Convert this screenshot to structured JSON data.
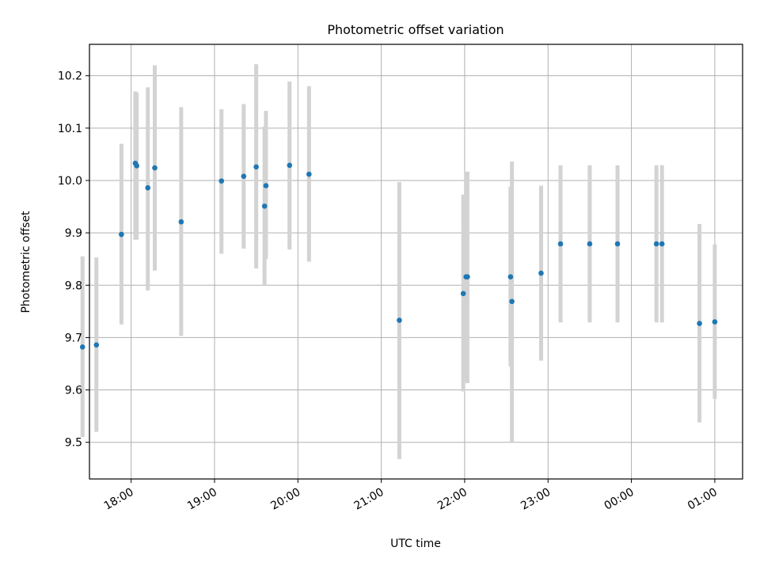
{
  "chart_data": {
    "type": "scatter",
    "title": "Photometric offset variation",
    "xlabel": "UTC time",
    "ylabel": "Photometric offset",
    "x_axis": {
      "kind": "time",
      "range": [
        "17:30",
        "01:20"
      ],
      "ticks": [
        "18:00",
        "19:00",
        "20:00",
        "21:00",
        "22:00",
        "23:00",
        "00:00",
        "01:00"
      ]
    },
    "y_axis": {
      "range": [
        9.43,
        10.26
      ],
      "ticks": [
        "9.5",
        "9.6",
        "9.7",
        "9.8",
        "9.9",
        "10.0",
        "10.1",
        "10.2"
      ]
    },
    "grid": true,
    "colors": {
      "point": "#1f77b4",
      "errorbar": "#d3d3d3",
      "grid": "#b0b0b0"
    },
    "series": [
      {
        "points": [
          {
            "x": "17:25",
            "y": 9.682,
            "ylow": 9.51,
            "yhigh": 9.855
          },
          {
            "x": "17:35",
            "y": 9.686,
            "ylow": 9.52,
            "yhigh": 9.853
          },
          {
            "x": "17:53",
            "y": 9.897,
            "ylow": 9.725,
            "yhigh": 10.07
          },
          {
            "x": "18:03",
            "y": 10.033,
            "ylow": 9.887,
            "yhigh": 10.17
          },
          {
            "x": "18:04",
            "y": 10.028,
            "ylow": 9.887,
            "yhigh": 10.168
          },
          {
            "x": "18:12",
            "y": 9.986,
            "ylow": 9.79,
            "yhigh": 10.178
          },
          {
            "x": "18:17",
            "y": 10.024,
            "ylow": 9.828,
            "yhigh": 10.22
          },
          {
            "x": "18:36",
            "y": 9.921,
            "ylow": 9.703,
            "yhigh": 10.14
          },
          {
            "x": "19:05",
            "y": 9.999,
            "ylow": 9.86,
            "yhigh": 10.136
          },
          {
            "x": "19:21",
            "y": 10.008,
            "ylow": 9.87,
            "yhigh": 10.146
          },
          {
            "x": "19:30",
            "y": 10.026,
            "ylow": 9.832,
            "yhigh": 10.222
          },
          {
            "x": "19:36",
            "y": 9.951,
            "ylow": 9.8,
            "yhigh": 10.103
          },
          {
            "x": "19:37",
            "y": 9.99,
            "ylow": 9.85,
            "yhigh": 10.133
          },
          {
            "x": "19:54",
            "y": 10.029,
            "ylow": 9.868,
            "yhigh": 10.189
          },
          {
            "x": "20:08",
            "y": 10.012,
            "ylow": 9.845,
            "yhigh": 10.18
          },
          {
            "x": "21:13",
            "y": 9.733,
            "ylow": 9.468,
            "yhigh": 9.997
          },
          {
            "x": "21:59",
            "y": 9.784,
            "ylow": 9.597,
            "yhigh": 9.973
          },
          {
            "x": "22:01",
            "y": 9.816,
            "ylow": 9.617,
            "yhigh": 10.016
          },
          {
            "x": "22:02",
            "y": 9.816,
            "ylow": 9.613,
            "yhigh": 10.017
          },
          {
            "x": "22:33",
            "y": 9.816,
            "ylow": 9.645,
            "yhigh": 9.988
          },
          {
            "x": "22:34",
            "y": 9.769,
            "ylow": 9.5,
            "yhigh": 10.036
          },
          {
            "x": "22:55",
            "y": 9.823,
            "ylow": 9.656,
            "yhigh": 9.99
          },
          {
            "x": "23:09",
            "y": 9.879,
            "ylow": 9.729,
            "yhigh": 10.029
          },
          {
            "x": "23:30",
            "y": 9.879,
            "ylow": 9.729,
            "yhigh": 10.029
          },
          {
            "x": "23:50",
            "y": 9.879,
            "ylow": 9.729,
            "yhigh": 10.029
          },
          {
            "x": "00:18",
            "y": 9.879,
            "ylow": 9.729,
            "yhigh": 10.029
          },
          {
            "x": "00:22",
            "y": 9.879,
            "ylow": 9.729,
            "yhigh": 10.029
          },
          {
            "x": "00:49",
            "y": 9.727,
            "ylow": 9.538,
            "yhigh": 9.917
          },
          {
            "x": "01:00",
            "y": 9.73,
            "ylow": 9.583,
            "yhigh": 9.878
          }
        ]
      }
    ]
  }
}
